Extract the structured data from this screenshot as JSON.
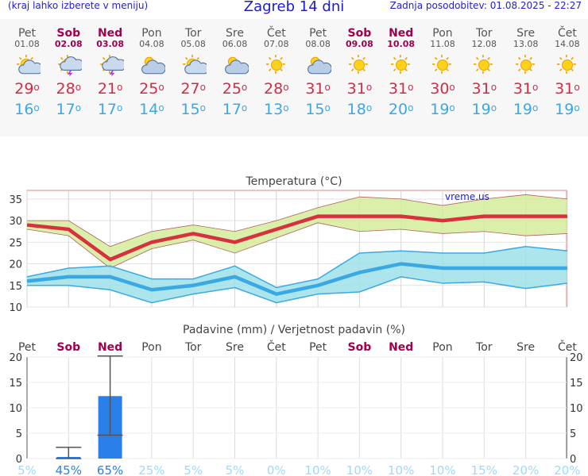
{
  "header": {
    "left_note": "(kraj lahko izberete v meniju)",
    "title": "Zagreb 14 dni",
    "updated": "Zadnja posodobitev: 01.08.2025 - 22:27"
  },
  "days": [
    {
      "name": "Pet",
      "date": "01.08",
      "weekend": false,
      "icon": "sun-cloud-icon",
      "max": "29",
      "min": "16"
    },
    {
      "name": "Sob",
      "date": "02.08",
      "weekend": true,
      "icon": "thunderstorm-icon",
      "max": "28",
      "min": "17"
    },
    {
      "name": "Ned",
      "date": "03.08",
      "weekend": true,
      "icon": "thunderstorm-icon",
      "max": "21",
      "min": "17"
    },
    {
      "name": "Pon",
      "date": "04.08",
      "weekend": false,
      "icon": "cloudy-icon",
      "max": "25",
      "min": "14"
    },
    {
      "name": "Tor",
      "date": "05.08",
      "weekend": false,
      "icon": "sun-cloud-icon",
      "max": "27",
      "min": "15"
    },
    {
      "name": "Sre",
      "date": "06.08",
      "weekend": false,
      "icon": "cloudy-icon",
      "max": "25",
      "min": "17"
    },
    {
      "name": "Čet",
      "date": "07.08",
      "weekend": false,
      "icon": "sun-icon",
      "max": "28",
      "min": "13"
    },
    {
      "name": "Pet",
      "date": "08.08",
      "weekend": false,
      "icon": "cloudy-icon",
      "max": "31",
      "min": "15"
    },
    {
      "name": "Sob",
      "date": "09.08",
      "weekend": true,
      "icon": "sun-icon",
      "max": "31",
      "min": "18"
    },
    {
      "name": "Ned",
      "date": "10.08",
      "weekend": true,
      "icon": "sun-icon",
      "max": "31",
      "min": "20"
    },
    {
      "name": "Pon",
      "date": "11.08",
      "weekend": false,
      "icon": "sun-icon",
      "max": "30",
      "min": "19"
    },
    {
      "name": "Tor",
      "date": "12.08",
      "weekend": false,
      "icon": "sun-icon",
      "max": "31",
      "min": "19"
    },
    {
      "name": "Sre",
      "date": "13.08",
      "weekend": false,
      "icon": "sun-icon",
      "max": "31",
      "min": "19"
    },
    {
      "name": "Čet",
      "date": "14.08",
      "weekend": false,
      "icon": "sun-icon",
      "max": "31",
      "min": "19"
    }
  ],
  "chart_data": [
    {
      "type": "line",
      "title": "Temperatura (°C)",
      "watermark": "vreme.us",
      "ylim": [
        10,
        37
      ],
      "yticks": [
        10,
        15,
        20,
        25,
        30,
        35
      ],
      "categories": [
        "Pet",
        "Sob",
        "Ned",
        "Pon",
        "Tor",
        "Sre",
        "Čet",
        "Pet",
        "Sob",
        "Ned",
        "Pon",
        "Tor",
        "Sre",
        "Čet"
      ],
      "series": [
        {
          "values": [
            29,
            28,
            21,
            25,
            27,
            25,
            28,
            31,
            31,
            31,
            30,
            31,
            31,
            31
          ],
          "band_high": [
            30,
            30,
            24,
            27.5,
            29,
            27.5,
            30,
            33,
            35.5,
            35,
            33.5,
            35,
            36,
            35
          ],
          "band_low": [
            28,
            26.5,
            19,
            23.5,
            25.5,
            22.5,
            26,
            29.5,
            27.5,
            28,
            27,
            27.5,
            26.5,
            27
          ],
          "color": "#d9303f",
          "band_color": "#d4ec9a"
        },
        {
          "values": [
            16,
            17,
            17,
            14,
            15,
            17,
            13,
            15,
            18,
            20,
            19,
            19,
            19,
            19
          ],
          "band_high": [
            17,
            19,
            19.5,
            16.5,
            16.5,
            19.5,
            14.5,
            16.5,
            22.5,
            23,
            22.5,
            22.5,
            24,
            23
          ],
          "band_low": [
            15,
            15,
            14,
            11,
            13,
            14.5,
            11,
            13,
            13.5,
            17,
            15.5,
            15.8,
            14.3,
            15.5
          ],
          "color": "#3aa9e3",
          "band_color": "#9fe0ea"
        }
      ],
      "colors": {
        "weekend": "#a0004d",
        "axis": "#333333"
      }
    },
    {
      "type": "bar",
      "title": "Padavine (mm) / Verjetnost padavin (%)",
      "ylim": [
        0,
        20
      ],
      "yticks": [
        0,
        5,
        10,
        15,
        20
      ],
      "categories": [
        "Pet",
        "Sob",
        "Ned",
        "Pon",
        "Tor",
        "Sre",
        "Čet",
        "Pet",
        "Sob",
        "Ned",
        "Pon",
        "Tor",
        "Sre",
        "Čet"
      ],
      "values": [
        0,
        0.3,
        12.3,
        0,
        0,
        0,
        0,
        0,
        0,
        0,
        0,
        0,
        0,
        0
      ],
      "err_low": [
        null,
        0,
        4.6,
        null,
        null,
        null,
        null,
        null,
        null,
        null,
        null,
        null,
        null,
        null
      ],
      "err_high": [
        null,
        2.2,
        20.2,
        null,
        null,
        null,
        null,
        null,
        null,
        null,
        null,
        null,
        null,
        null
      ],
      "probability": [
        "5%",
        "45%",
        "65%",
        "25%",
        "5%",
        "5%",
        "0%",
        "10%",
        "10%",
        "10%",
        "10%",
        "15%",
        "20%",
        "20%"
      ],
      "colors": {
        "bar": "#2b7fe8",
        "prob_high": "#2b7fe8",
        "prob_low": "#9fdaf5",
        "weekend": "#a0004d"
      }
    }
  ]
}
